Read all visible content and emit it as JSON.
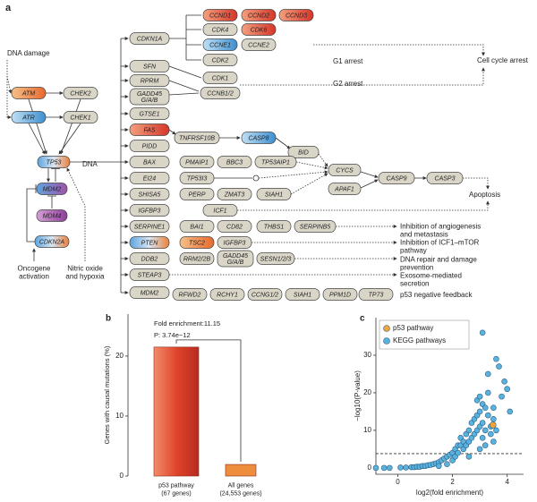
{
  "panel_a": {
    "nodes": [
      "ATM",
      "CHEK2",
      "ATR",
      "CHEK1",
      "TP53",
      "MDM2",
      "MDM4",
      "CDKN2A",
      "CDKN1A",
      "SFN",
      "RPRM",
      [
        "GADD45",
        "G/A/B"
      ],
      "GTSE1",
      "FAS",
      "PIDD",
      "BAX",
      "EI24",
      "SHISA5",
      "IGFBP3",
      "SERPINE1",
      "PTEN",
      "DDB2",
      "STEAP3",
      "MDM2",
      "CCND1",
      "CCND2",
      "CCND3",
      "CDK4",
      "CDK6",
      "CCNE1",
      "CCNE2",
      "CDK2",
      "CDK1",
      "CCNB1/2",
      "TNFRSF10B",
      "CASP8",
      "BID",
      "PMAIP1",
      "BBC3",
      "TP53AIP1",
      "TP53I3",
      "PERP",
      "ZMAT3",
      "SIAH1",
      "ICF1",
      "CYCS",
      "APAF1",
      "CASP9",
      "CASP3",
      "BAI1",
      "CD82",
      "THBS1",
      "SERPINB5",
      "TSC2",
      "IGFBP3",
      "RRM2/2B",
      [
        "GADD45",
        "G/A/B"
      ],
      "SESN1/2/3",
      "RFWD2",
      "RCHY1",
      "CCNG1/2",
      "SIAH1",
      "PPM1D",
      "TP73"
    ],
    "texts": [
      "a",
      "DNA damage",
      "DNA",
      [
        "Oncogene",
        "activation"
      ],
      [
        "Nitric oxide",
        "and hypoxia"
      ],
      "G1 arrest",
      "G2 arrest",
      "Cell cycle arrest",
      "Apoptosis",
      [
        "Inhibition of angiogenesis",
        "and metastasis"
      ],
      [
        "Inhibition of ICF1–mTOR",
        "pathway"
      ],
      [
        "DNA repair and damage",
        "prevention"
      ],
      [
        "Exosome-mediated",
        "secretion"
      ],
      "p53 negative feedback"
    ]
  },
  "chart_data": [
    {
      "type": "bar",
      "panel": "b",
      "ylabel": "Genes with causal mutations (%)",
      "categories": [
        [
          "p53 pathway",
          "(67 genes)"
        ],
        [
          "All genes",
          "(24,553 genes)"
        ]
      ],
      "values": [
        21.5,
        1.93
      ],
      "colors": [
        "#d9452b",
        "#ee8d3c"
      ],
      "ylim": [
        0,
        27
      ],
      "yticks": [
        0,
        10,
        20
      ],
      "annotations": [
        "Fold enrichment:11.15",
        "P: 3.74e−12"
      ]
    },
    {
      "type": "scatter",
      "panel": "c",
      "xlabel": "log2(fold enrichment)",
      "ylabel": "−log10(P-value)",
      "xlim": [
        -0.8,
        4.6
      ],
      "ylim": [
        -1.7,
        40
      ],
      "xticks": [
        0,
        2,
        4
      ],
      "yticks": [
        0,
        10,
        20,
        30
      ],
      "reference_line": 3.8,
      "legend": "top-left",
      "series": [
        {
          "name": "p53 pathway",
          "color": "#f2a43a",
          "x": [
            3.48
          ],
          "y": [
            11.43
          ]
        },
        {
          "name": "KEGG pathways",
          "color": "#5ab2df",
          "x": [
            -0.8,
            -0.5,
            -0.3,
            0.1,
            0.3,
            0.5,
            0.6,
            0.7,
            0.8,
            0.9,
            1.0,
            1.1,
            1.2,
            1.3,
            1.4,
            1.5,
            1.5,
            1.6,
            1.7,
            1.8,
            1.8,
            1.9,
            2.0,
            2.0,
            2.1,
            2.1,
            2.2,
            2.2,
            2.3,
            2.3,
            2.4,
            2.4,
            2.5,
            2.5,
            2.6,
            2.6,
            2.7,
            2.7,
            2.8,
            2.8,
            2.9,
            2.9,
            3.0,
            3.0,
            3.0,
            3.1,
            3.1,
            3.1,
            3.2,
            3.2,
            3.2,
            3.3,
            3.3,
            3.4,
            3.4,
            3.5,
            3.5,
            3.6,
            3.6,
            3.7,
            3.8,
            3.9,
            4.0,
            4.1,
            2.6,
            2.9,
            3.3,
            3.5,
            3.1,
            3.0
          ],
          "y": [
            0,
            0,
            0,
            0.1,
            0.1,
            0.2,
            0.2,
            0.3,
            0.3,
            0.5,
            0.5,
            0.7,
            0.8,
            1,
            1.2,
            1.5,
            0.5,
            2,
            2.5,
            3,
            1,
            3.5,
            4,
            2,
            5,
            3,
            6,
            4,
            6,
            8,
            7,
            5,
            9,
            6,
            10,
            7,
            12,
            8,
            13,
            9,
            14,
            10,
            15,
            11,
            5,
            17,
            12,
            8,
            16,
            10,
            6,
            14,
            20,
            11,
            9,
            13,
            16,
            29,
            10,
            27,
            19,
            23,
            21,
            15,
            3,
            18,
            25,
            7,
            36,
            19
          ]
        }
      ]
    }
  ]
}
